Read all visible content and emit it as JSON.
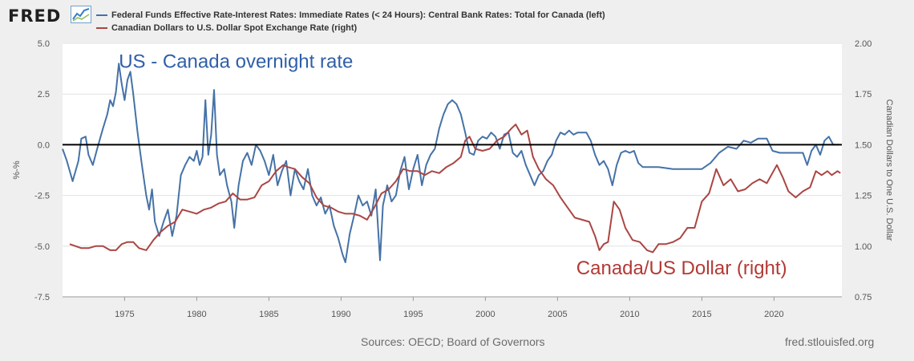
{
  "header": {
    "logo_text": "FRED",
    "legend": [
      {
        "label": "Federal Funds Effective Rate-Interest Rates: Immediate Rates (< 24 Hours): Central Bank Rates: Total for Canada (left)",
        "color": "#4572a7"
      },
      {
        "label": "Canadian Dollars to U.S. Dollar Spot Exchange Rate (right)",
        "color": "#aa4643"
      }
    ]
  },
  "footer": {
    "sources": "Sources: OECD; Board of Governors",
    "site": "fred.stlouisfed.org"
  },
  "chart_data": {
    "type": "line",
    "xlim": [
      1970.7,
      2024.7
    ],
    "x_ticks": [
      1975,
      1980,
      1985,
      1990,
      1995,
      2000,
      2005,
      2010,
      2015,
      2020
    ],
    "y_left": {
      "label": "%-%",
      "ylim": [
        -7.5,
        5.0
      ],
      "ticks": [
        "5.0",
        "2.5",
        "0.0",
        "-2.5",
        "-5.0",
        "-7.5"
      ]
    },
    "y_right": {
      "label": "Canadian Dollars to One U.S. Dollar",
      "ylim": [
        0.75,
        2.0
      ],
      "ticks": [
        "2.00",
        "1.75",
        "1.50",
        "1.25",
        "1.00",
        "0.75"
      ]
    },
    "zero_line": 0.0,
    "grid": "horizontal",
    "annotations": [
      {
        "text": "US - Canada overnight rate",
        "x": 1974.6,
        "y_left": 3.8,
        "color": "#2f5fa8"
      },
      {
        "text": "Canada/US Dollar (right)",
        "x": 2006.3,
        "y_left": -6.4,
        "color": "#b23a35"
      }
    ],
    "series": [
      {
        "name": "Federal Funds Effective Rate-Interest Rates: Immediate Rates (< 24 Hours): Central Bank Rates: Total for Canada (left)",
        "axis": "left",
        "color": "#4572a7",
        "points": [
          [
            1970.7,
            -0.2
          ],
          [
            1971.0,
            -0.8
          ],
          [
            1971.4,
            -1.8
          ],
          [
            1971.8,
            -0.8
          ],
          [
            1972.0,
            0.3
          ],
          [
            1972.3,
            0.4
          ],
          [
            1972.5,
            -0.5
          ],
          [
            1972.8,
            -1.0
          ],
          [
            1973.1,
            -0.2
          ],
          [
            1973.5,
            0.8
          ],
          [
            1973.8,
            1.5
          ],
          [
            1974.0,
            2.2
          ],
          [
            1974.2,
            1.9
          ],
          [
            1974.4,
            2.6
          ],
          [
            1974.6,
            4.0
          ],
          [
            1974.8,
            3.0
          ],
          [
            1975.0,
            2.2
          ],
          [
            1975.2,
            3.2
          ],
          [
            1975.4,
            3.6
          ],
          [
            1975.6,
            2.5
          ],
          [
            1975.9,
            0.6
          ],
          [
            1976.2,
            -1.0
          ],
          [
            1976.5,
            -2.5
          ],
          [
            1976.7,
            -3.2
          ],
          [
            1976.9,
            -2.2
          ],
          [
            1977.1,
            -3.8
          ],
          [
            1977.4,
            -4.5
          ],
          [
            1977.7,
            -3.8
          ],
          [
            1978.0,
            -3.2
          ],
          [
            1978.3,
            -4.5
          ],
          [
            1978.6,
            -3.5
          ],
          [
            1978.9,
            -1.5
          ],
          [
            1979.2,
            -1.0
          ],
          [
            1979.5,
            -0.6
          ],
          [
            1979.8,
            -0.8
          ],
          [
            1980.0,
            -0.3
          ],
          [
            1980.2,
            -1.0
          ],
          [
            1980.4,
            -0.6
          ],
          [
            1980.6,
            2.2
          ],
          [
            1980.8,
            -0.5
          ],
          [
            1981.0,
            0.5
          ],
          [
            1981.2,
            2.7
          ],
          [
            1981.4,
            -0.5
          ],
          [
            1981.6,
            -1.5
          ],
          [
            1981.9,
            -1.2
          ],
          [
            1982.1,
            -2.0
          ],
          [
            1982.4,
            -2.8
          ],
          [
            1982.6,
            -4.1
          ],
          [
            1982.9,
            -2.0
          ],
          [
            1983.2,
            -0.8
          ],
          [
            1983.5,
            -0.4
          ],
          [
            1983.8,
            -1.0
          ],
          [
            1984.1,
            0.0
          ],
          [
            1984.4,
            -0.3
          ],
          [
            1984.7,
            -0.8
          ],
          [
            1985.0,
            -1.5
          ],
          [
            1985.3,
            -0.5
          ],
          [
            1985.6,
            -2.0
          ],
          [
            1985.9,
            -1.3
          ],
          [
            1986.2,
            -0.8
          ],
          [
            1986.5,
            -2.5
          ],
          [
            1986.8,
            -1.2
          ],
          [
            1987.1,
            -1.8
          ],
          [
            1987.4,
            -2.2
          ],
          [
            1987.7,
            -1.2
          ],
          [
            1988.0,
            -2.5
          ],
          [
            1988.3,
            -3.0
          ],
          [
            1988.6,
            -2.6
          ],
          [
            1988.9,
            -3.4
          ],
          [
            1989.2,
            -3.0
          ],
          [
            1989.5,
            -4.0
          ],
          [
            1989.8,
            -4.6
          ],
          [
            1990.1,
            -5.4
          ],
          [
            1990.3,
            -5.8
          ],
          [
            1990.6,
            -4.4
          ],
          [
            1990.9,
            -3.5
          ],
          [
            1991.2,
            -2.5
          ],
          [
            1991.5,
            -3.0
          ],
          [
            1991.8,
            -2.8
          ],
          [
            1992.1,
            -3.5
          ],
          [
            1992.4,
            -2.2
          ],
          [
            1992.7,
            -5.7
          ],
          [
            1992.9,
            -3.0
          ],
          [
            1993.2,
            -2.0
          ],
          [
            1993.5,
            -2.8
          ],
          [
            1993.8,
            -2.5
          ],
          [
            1994.1,
            -1.3
          ],
          [
            1994.4,
            -0.6
          ],
          [
            1994.7,
            -2.2
          ],
          [
            1995.0,
            -1.2
          ],
          [
            1995.3,
            -0.5
          ],
          [
            1995.6,
            -2.0
          ],
          [
            1995.9,
            -1.0
          ],
          [
            1996.2,
            -0.5
          ],
          [
            1996.5,
            -0.2
          ],
          [
            1996.8,
            0.8
          ],
          [
            1997.1,
            1.5
          ],
          [
            1997.4,
            2.0
          ],
          [
            1997.7,
            2.2
          ],
          [
            1998.0,
            2.0
          ],
          [
            1998.3,
            1.5
          ],
          [
            1998.6,
            0.6
          ],
          [
            1998.9,
            -0.4
          ],
          [
            1999.2,
            -0.5
          ],
          [
            1999.5,
            0.2
          ],
          [
            1999.8,
            0.4
          ],
          [
            2000.1,
            0.3
          ],
          [
            2000.4,
            0.6
          ],
          [
            2000.7,
            0.4
          ],
          [
            2001.0,
            -0.2
          ],
          [
            2001.3,
            0.5
          ],
          [
            2001.6,
            0.6
          ],
          [
            2001.9,
            -0.4
          ],
          [
            2002.2,
            -0.6
          ],
          [
            2002.5,
            -0.3
          ],
          [
            2002.8,
            -1.0
          ],
          [
            2003.1,
            -1.5
          ],
          [
            2003.4,
            -2.0
          ],
          [
            2003.7,
            -1.5
          ],
          [
            2004.0,
            -1.3
          ],
          [
            2004.3,
            -0.8
          ],
          [
            2004.6,
            -0.5
          ],
          [
            2004.9,
            0.2
          ],
          [
            2005.2,
            0.6
          ],
          [
            2005.5,
            0.5
          ],
          [
            2005.8,
            0.7
          ],
          [
            2006.1,
            0.5
          ],
          [
            2006.4,
            0.6
          ],
          [
            2006.7,
            0.6
          ],
          [
            2007.0,
            0.6
          ],
          [
            2007.3,
            0.2
          ],
          [
            2007.6,
            -0.5
          ],
          [
            2007.9,
            -1.0
          ],
          [
            2008.2,
            -0.8
          ],
          [
            2008.5,
            -1.2
          ],
          [
            2008.8,
            -2.0
          ],
          [
            2009.1,
            -1.0
          ],
          [
            2009.4,
            -0.4
          ],
          [
            2009.7,
            -0.3
          ],
          [
            2010.0,
            -0.4
          ],
          [
            2010.3,
            -0.3
          ],
          [
            2010.6,
            -0.9
          ],
          [
            2010.9,
            -1.1
          ],
          [
            2011.5,
            -1.1
          ],
          [
            2012.0,
            -1.1
          ],
          [
            2013.0,
            -1.2
          ],
          [
            2014.0,
            -1.2
          ],
          [
            2015.0,
            -1.2
          ],
          [
            2015.6,
            -0.9
          ],
          [
            2016.2,
            -0.4
          ],
          [
            2016.8,
            -0.1
          ],
          [
            2017.4,
            -0.2
          ],
          [
            2017.9,
            0.2
          ],
          [
            2018.4,
            0.1
          ],
          [
            2018.9,
            0.3
          ],
          [
            2019.5,
            0.3
          ],
          [
            2019.9,
            -0.3
          ],
          [
            2020.4,
            -0.4
          ],
          [
            2021.0,
            -0.4
          ],
          [
            2021.6,
            -0.4
          ],
          [
            2022.0,
            -0.4
          ],
          [
            2022.3,
            -1.0
          ],
          [
            2022.6,
            -0.3
          ],
          [
            2022.9,
            0.0
          ],
          [
            2023.2,
            -0.5
          ],
          [
            2023.5,
            0.2
          ],
          [
            2023.8,
            0.4
          ],
          [
            2024.1,
            0.0
          ],
          [
            2024.5,
            0.0
          ]
        ]
      },
      {
        "name": "Canadian Dollars to U.S. Dollar Spot Exchange Rate (right)",
        "axis": "right",
        "color": "#aa4643",
        "points": [
          [
            1971.2,
            1.01
          ],
          [
            1971.6,
            1.0
          ],
          [
            1972.0,
            0.99
          ],
          [
            1972.5,
            0.99
          ],
          [
            1973.0,
            1.0
          ],
          [
            1973.5,
            1.0
          ],
          [
            1974.0,
            0.98
          ],
          [
            1974.4,
            0.98
          ],
          [
            1974.8,
            1.01
          ],
          [
            1975.2,
            1.02
          ],
          [
            1975.6,
            1.02
          ],
          [
            1976.0,
            0.99
          ],
          [
            1976.5,
            0.98
          ],
          [
            1977.0,
            1.03
          ],
          [
            1977.5,
            1.07
          ],
          [
            1978.0,
            1.1
          ],
          [
            1978.5,
            1.12
          ],
          [
            1979.0,
            1.18
          ],
          [
            1979.5,
            1.17
          ],
          [
            1980.0,
            1.16
          ],
          [
            1980.5,
            1.18
          ],
          [
            1981.0,
            1.19
          ],
          [
            1981.5,
            1.21
          ],
          [
            1982.0,
            1.22
          ],
          [
            1982.5,
            1.26
          ],
          [
            1983.0,
            1.23
          ],
          [
            1983.5,
            1.23
          ],
          [
            1984.0,
            1.24
          ],
          [
            1984.5,
            1.3
          ],
          [
            1985.0,
            1.32
          ],
          [
            1985.5,
            1.37
          ],
          [
            1986.0,
            1.4
          ],
          [
            1986.3,
            1.39
          ],
          [
            1986.8,
            1.38
          ],
          [
            1987.3,
            1.34
          ],
          [
            1987.8,
            1.31
          ],
          [
            1988.3,
            1.24
          ],
          [
            1988.8,
            1.2
          ],
          [
            1989.3,
            1.19
          ],
          [
            1989.8,
            1.17
          ],
          [
            1990.3,
            1.16
          ],
          [
            1990.8,
            1.16
          ],
          [
            1991.3,
            1.15
          ],
          [
            1991.8,
            1.13
          ],
          [
            1992.3,
            1.19
          ],
          [
            1992.8,
            1.26
          ],
          [
            1993.3,
            1.28
          ],
          [
            1993.8,
            1.32
          ],
          [
            1994.3,
            1.38
          ],
          [
            1994.8,
            1.37
          ],
          [
            1995.3,
            1.37
          ],
          [
            1995.8,
            1.35
          ],
          [
            1996.3,
            1.37
          ],
          [
            1996.8,
            1.36
          ],
          [
            1997.3,
            1.39
          ],
          [
            1997.8,
            1.41
          ],
          [
            1998.3,
            1.44
          ],
          [
            1998.6,
            1.52
          ],
          [
            1998.9,
            1.54
          ],
          [
            1999.3,
            1.48
          ],
          [
            1999.8,
            1.47
          ],
          [
            2000.3,
            1.48
          ],
          [
            2000.8,
            1.52
          ],
          [
            2001.3,
            1.54
          ],
          [
            2001.8,
            1.58
          ],
          [
            2002.1,
            1.6
          ],
          [
            2002.5,
            1.55
          ],
          [
            2002.9,
            1.57
          ],
          [
            2003.3,
            1.44
          ],
          [
            2003.7,
            1.38
          ],
          [
            2004.2,
            1.33
          ],
          [
            2004.7,
            1.3
          ],
          [
            2005.2,
            1.24
          ],
          [
            2005.7,
            1.19
          ],
          [
            2006.2,
            1.14
          ],
          [
            2006.7,
            1.13
          ],
          [
            2007.2,
            1.12
          ],
          [
            2007.6,
            1.05
          ],
          [
            2007.9,
            0.98
          ],
          [
            2008.2,
            1.01
          ],
          [
            2008.5,
            1.02
          ],
          [
            2008.9,
            1.22
          ],
          [
            2009.3,
            1.18
          ],
          [
            2009.7,
            1.09
          ],
          [
            2010.2,
            1.03
          ],
          [
            2010.7,
            1.02
          ],
          [
            2011.2,
            0.98
          ],
          [
            2011.6,
            0.97
          ],
          [
            2012.0,
            1.01
          ],
          [
            2012.5,
            1.01
          ],
          [
            2013.0,
            1.02
          ],
          [
            2013.5,
            1.04
          ],
          [
            2014.0,
            1.09
          ],
          [
            2014.5,
            1.09
          ],
          [
            2015.0,
            1.22
          ],
          [
            2015.5,
            1.26
          ],
          [
            2016.0,
            1.38
          ],
          [
            2016.5,
            1.3
          ],
          [
            2017.0,
            1.33
          ],
          [
            2017.5,
            1.27
          ],
          [
            2018.0,
            1.28
          ],
          [
            2018.5,
            1.31
          ],
          [
            2019.0,
            1.33
          ],
          [
            2019.5,
            1.31
          ],
          [
            2020.2,
            1.4
          ],
          [
            2020.6,
            1.34
          ],
          [
            2021.0,
            1.27
          ],
          [
            2021.5,
            1.24
          ],
          [
            2022.0,
            1.27
          ],
          [
            2022.5,
            1.29
          ],
          [
            2022.9,
            1.37
          ],
          [
            2023.3,
            1.35
          ],
          [
            2023.7,
            1.37
          ],
          [
            2024.0,
            1.35
          ],
          [
            2024.4,
            1.37
          ],
          [
            2024.6,
            1.36
          ]
        ]
      }
    ]
  }
}
